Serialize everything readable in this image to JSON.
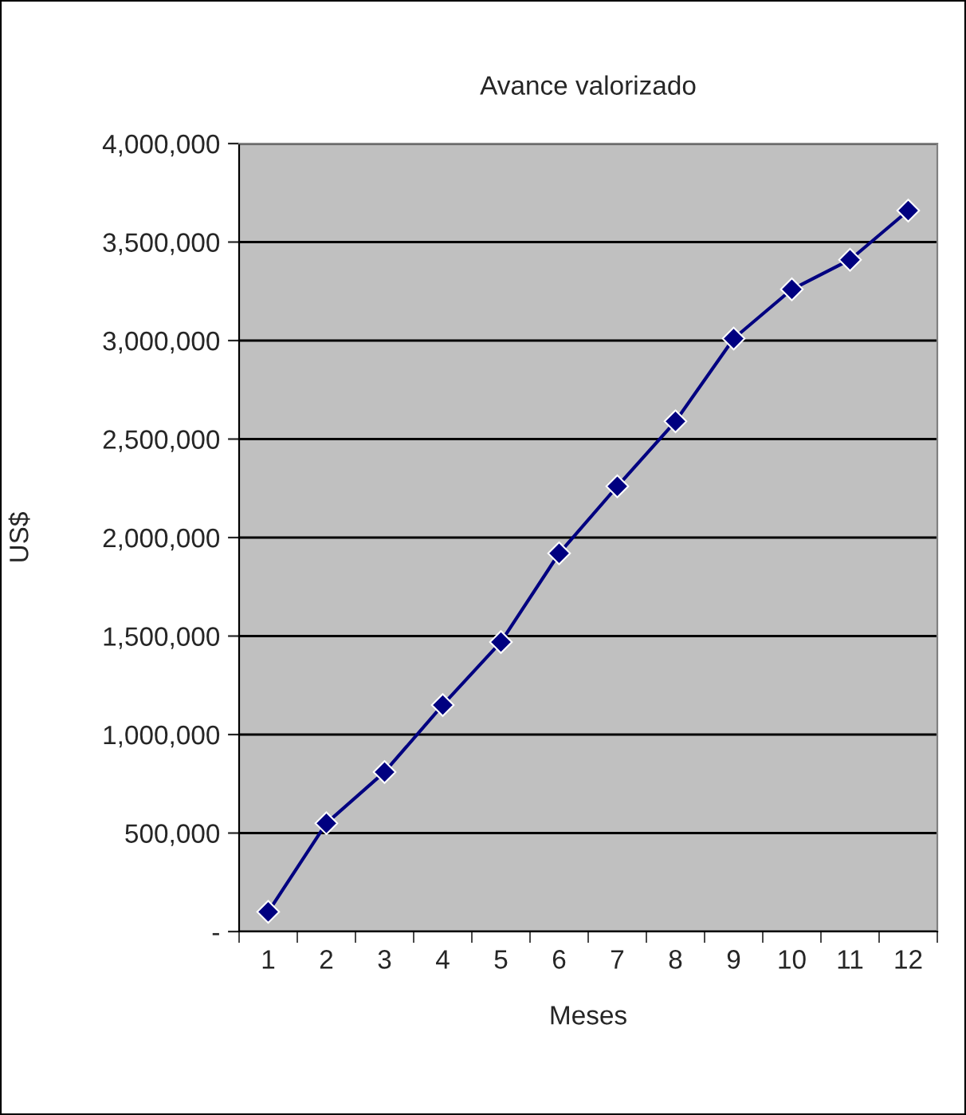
{
  "chart_data": {
    "type": "line",
    "title": "Avance valorizado",
    "xlabel": "Meses",
    "ylabel": "US$",
    "categories": [
      "1",
      "2",
      "3",
      "4",
      "5",
      "6",
      "7",
      "8",
      "9",
      "10",
      "11",
      "12"
    ],
    "series": [
      {
        "color": "#000080",
        "values": [
          100000,
          550000,
          810000,
          1150000,
          1470000,
          1920000,
          2260000,
          2590000,
          3010000,
          3260000,
          3410000,
          3660000
        ]
      }
    ],
    "ylim": [
      0,
      4000000
    ],
    "yticks": [
      {
        "value": 0,
        "label": "-"
      },
      {
        "value": 500000,
        "label": "500,000"
      },
      {
        "value": 1000000,
        "label": "1,000,000"
      },
      {
        "value": 1500000,
        "label": "1,500,000"
      },
      {
        "value": 2000000,
        "label": "2,000,000"
      },
      {
        "value": 2500000,
        "label": "2,500,000"
      },
      {
        "value": 3000000,
        "label": "3,000,000"
      },
      {
        "value": 3500000,
        "label": "3,500,000"
      },
      {
        "value": 4000000,
        "label": "4,000,000"
      }
    ],
    "grid": "y",
    "marker": "diamond",
    "line_style": "solid"
  }
}
